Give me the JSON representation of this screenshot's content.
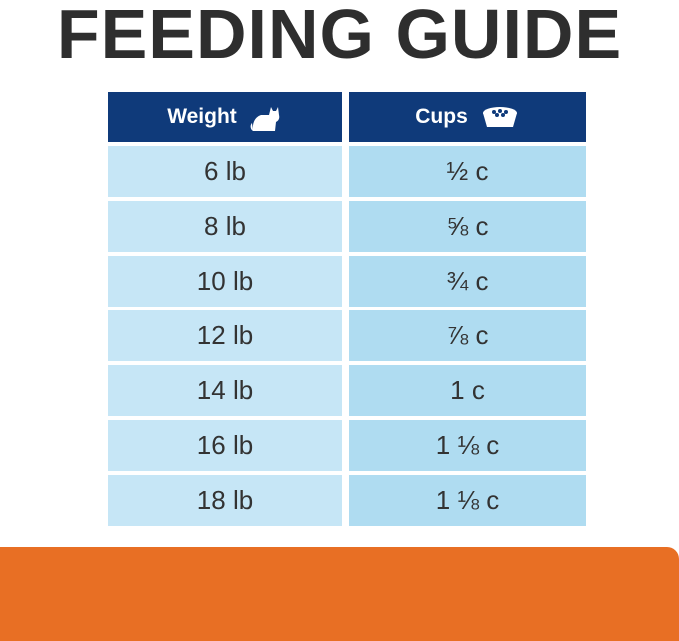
{
  "header": {
    "title": "FEEDING GUIDE"
  },
  "table": {
    "columns": [
      "Weight",
      "Cups"
    ],
    "rows": [
      [
        "6 lb",
        "½ c"
      ],
      [
        "8 lb",
        "⅝ c"
      ],
      [
        "10 lb",
        "¾ c"
      ],
      [
        "12 lb",
        "⅞ c"
      ],
      [
        "14 lb",
        "1 c"
      ],
      [
        "16 lb",
        "1 ⅛ c"
      ],
      [
        "18 lb",
        "1 ⅛ c"
      ]
    ]
  }
}
